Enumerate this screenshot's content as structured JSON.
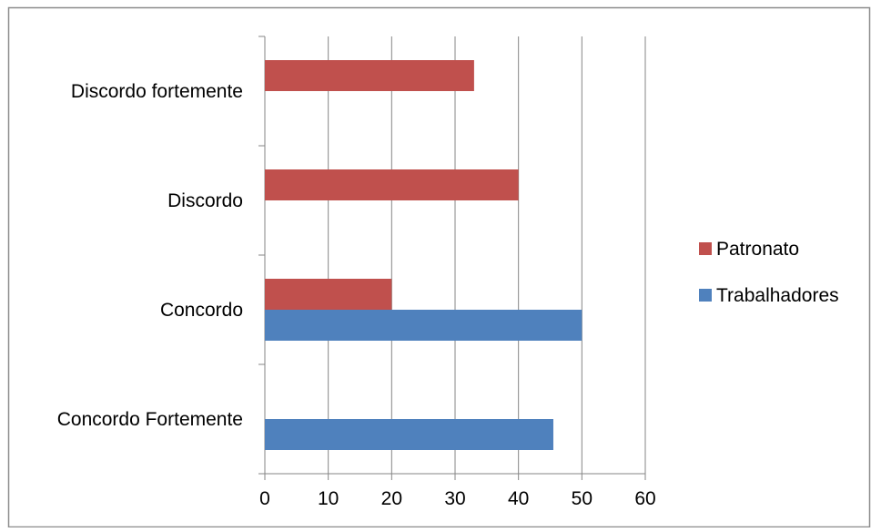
{
  "chart_data": {
    "type": "bar",
    "orientation": "horizontal",
    "categories": [
      "Concordo Fortemente",
      "Concordo",
      "Discordo",
      "Discordo fortemente"
    ],
    "series": [
      {
        "name": "Trabalhadores",
        "color": "#4f81bd",
        "values": [
          45.5,
          50,
          null,
          null
        ]
      },
      {
        "name": "Patronato",
        "color": "#c0504d",
        "values": [
          null,
          20,
          40,
          33
        ]
      }
    ],
    "legend_order": [
      "Patronato",
      "Trabalhadores"
    ],
    "xlim": [
      0,
      60
    ],
    "xticks": [
      0,
      10,
      20,
      30,
      40,
      50,
      60
    ],
    "grid": {
      "x": true,
      "y": false
    },
    "legend_position": "right",
    "title": "",
    "xlabel": "",
    "ylabel": ""
  }
}
